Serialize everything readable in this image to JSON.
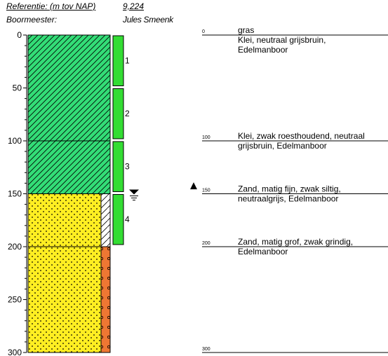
{
  "header": {
    "reference_label": "Referentie: (m tov NAP)",
    "reference_value": "9,224",
    "driller_label": "Boormeester:",
    "driller_value": "Jules Smeenk"
  },
  "depth_axis": {
    "min": 0,
    "max": 300,
    "ticks": [
      0,
      50,
      100,
      150,
      200,
      250,
      300
    ],
    "unit": "cm"
  },
  "colors": {
    "clay": "#33dd77",
    "sand": "#ffee22",
    "gravel_column": "#ee7733",
    "sample": "#33dd33",
    "line": "#000000"
  },
  "layers": [
    {
      "top": 0,
      "bottom": 100,
      "material": "clay",
      "description_lines": [
        "gras",
        "Klei, neutraal grijsbruin,",
        "Edelmanboor"
      ]
    },
    {
      "top": 100,
      "bottom": 150,
      "material": "clay",
      "description_lines": [
        "Klei, zwak roesthoudend, neutraal",
        "grijsbruin, Edelmanboor"
      ]
    },
    {
      "top": 150,
      "bottom": 200,
      "material": "sand",
      "description_lines": [
        "Zand, matig fijn, zwak siltig,",
        "neutraalgrijs, Edelmanboor"
      ]
    },
    {
      "top": 200,
      "bottom": 300,
      "material": "sand_gravel",
      "description_lines": [
        "Zand, matig grof, zwak grindig,",
        "Edelmanboor"
      ]
    }
  ],
  "description_depth_labels": [
    "0",
    "100",
    "150",
    "200",
    "300"
  ],
  "samples": [
    {
      "label": "1",
      "top": 0,
      "bottom": 48
    },
    {
      "label": "2",
      "top": 50,
      "bottom": 98
    },
    {
      "label": "3",
      "top": 100,
      "bottom": 148
    },
    {
      "label": "4",
      "top": 150,
      "bottom": 198
    }
  ],
  "groundwater_depth": 150,
  "marker_symbol": "▲",
  "marker_depth": 142
}
